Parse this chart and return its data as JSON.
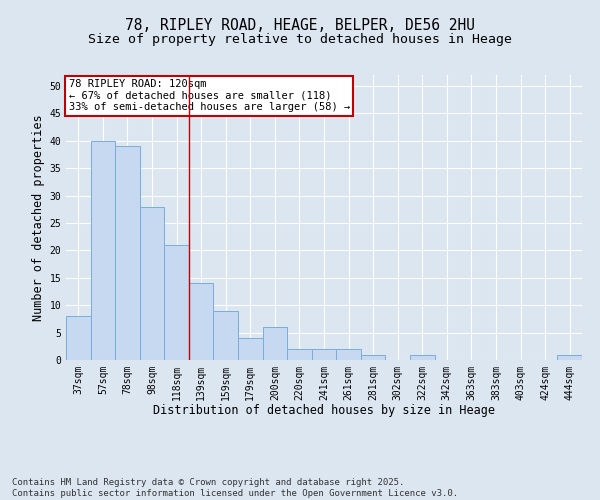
{
  "title_line1": "78, RIPLEY ROAD, HEAGE, BELPER, DE56 2HU",
  "title_line2": "Size of property relative to detached houses in Heage",
  "xlabel": "Distribution of detached houses by size in Heage",
  "ylabel": "Number of detached properties",
  "categories": [
    "37sqm",
    "57sqm",
    "78sqm",
    "98sqm",
    "118sqm",
    "139sqm",
    "159sqm",
    "179sqm",
    "200sqm",
    "220sqm",
    "241sqm",
    "261sqm",
    "281sqm",
    "302sqm",
    "322sqm",
    "342sqm",
    "363sqm",
    "383sqm",
    "403sqm",
    "424sqm",
    "444sqm"
  ],
  "values": [
    8,
    40,
    39,
    28,
    21,
    14,
    9,
    4,
    6,
    2,
    2,
    2,
    1,
    0,
    1,
    0,
    0,
    0,
    0,
    0,
    1
  ],
  "bar_color": "#c6d9f0",
  "bar_edge_color": "#7aadda",
  "highlight_index": 4,
  "highlight_line_color": "#c00000",
  "annotation_text": "78 RIPLEY ROAD: 120sqm\n← 67% of detached houses are smaller (118)\n33% of semi-detached houses are larger (58) →",
  "annotation_box_color": "#ffffff",
  "annotation_box_edge_color": "#c00000",
  "ylim": [
    0,
    52
  ],
  "yticks": [
    0,
    5,
    10,
    15,
    20,
    25,
    30,
    35,
    40,
    45,
    50
  ],
  "background_color": "#dce6f1",
  "plot_bg_color": "#dce6f1",
  "footer_line1": "Contains HM Land Registry data © Crown copyright and database right 2025.",
  "footer_line2": "Contains public sector information licensed under the Open Government Licence v3.0.",
  "title_fontsize": 10.5,
  "subtitle_fontsize": 9.5,
  "axis_label_fontsize": 8.5,
  "tick_fontsize": 7,
  "annotation_fontsize": 7.5,
  "footer_fontsize": 6.5
}
